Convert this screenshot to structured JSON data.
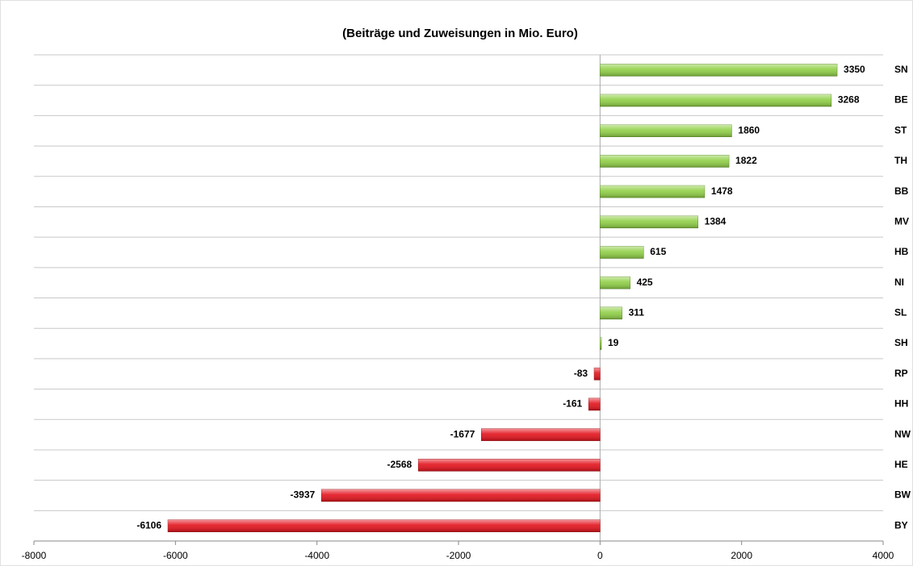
{
  "chart_data": {
    "type": "bar",
    "orientation": "horizontal",
    "title": "(Beiträge und Zuweisungen in Mio. Euro)",
    "categories": [
      "SN",
      "BE",
      "ST",
      "TH",
      "BB",
      "MV",
      "HB",
      "NI",
      "SL",
      "SH",
      "RP",
      "HH",
      "NW",
      "HE",
      "BW",
      "BY"
    ],
    "values": [
      3350,
      3268,
      1860,
      1822,
      1478,
      1384,
      615,
      425,
      311,
      19,
      -83,
      -161,
      -1677,
      -2568,
      -3937,
      -6106
    ],
    "color_positive": "#8fcf45",
    "color_negative": "#e3111b",
    "xlim": [
      -8000,
      4000
    ],
    "xticks": [
      -8000,
      -6000,
      -4000,
      -2000,
      0,
      2000,
      4000
    ]
  }
}
